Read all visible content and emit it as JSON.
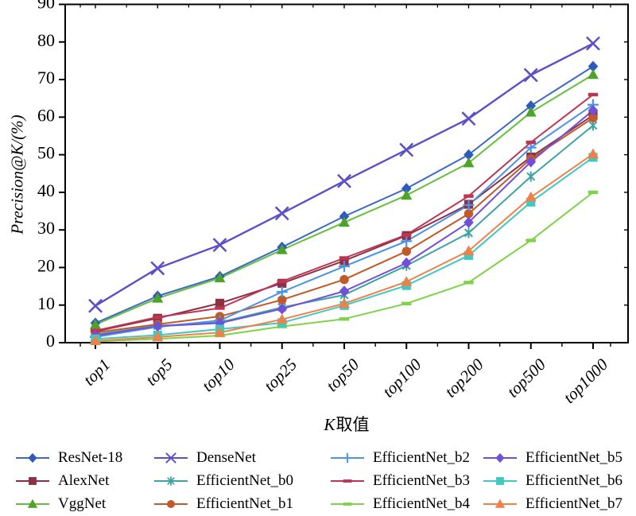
{
  "chart_data": {
    "type": "line",
    "title": "",
    "xlabel": "K取值",
    "xlabel_parts": {
      "k": "K",
      "rest": "取值"
    },
    "ylabel": "Precision@K/(%)",
    "categories": [
      "top1",
      "top5",
      "top10",
      "top25",
      "top50",
      "top100",
      "top200",
      "top500",
      "top1000"
    ],
    "ylim": [
      0,
      90
    ],
    "ytick_step": 10,
    "yticks": [
      0,
      10,
      20,
      30,
      40,
      50,
      60,
      70,
      80,
      90
    ],
    "grid": false,
    "legend_position": "bottom",
    "axis_color": "#000000",
    "series": [
      {
        "name": "ResNet-18",
        "marker": "diamond",
        "color": "#3b69c6",
        "marker_color": "#2f5bc0",
        "values": [
          5.2,
          12.4,
          17.6,
          25.4,
          33.6,
          41.0,
          50.0,
          63.0,
          73.5
        ]
      },
      {
        "name": "AlexNet",
        "marker": "square",
        "color": "#8e3044",
        "marker_color": "#8e3044",
        "values": [
          3.0,
          6.5,
          10.5,
          15.8,
          21.8,
          28.5,
          36.8,
          49.4,
          60.5
        ]
      },
      {
        "name": "VggNet",
        "marker": "triangle",
        "color": "#64c03c",
        "marker_color": "#4ea32a",
        "values": [
          4.8,
          11.8,
          17.2,
          24.7,
          32.0,
          39.2,
          47.8,
          61.3,
          71.3
        ]
      },
      {
        "name": "DenseNet",
        "marker": "x",
        "color": "#5b50c8",
        "marker_color": "#5b50c8",
        "values": [
          9.8,
          19.8,
          26.0,
          34.4,
          43.0,
          51.3,
          59.6,
          71.2,
          79.6
        ]
      },
      {
        "name": "EfficientNet_b0",
        "marker": "asterisk",
        "color": "#3fa3a3",
        "marker_color": "#3fa3a3",
        "values": [
          2.2,
          4.5,
          5.4,
          9.4,
          12.7,
          20.5,
          29.2,
          44.2,
          57.8
        ]
      },
      {
        "name": "EfficientNet_b1",
        "marker": "circle",
        "color": "#c05a28",
        "marker_color": "#c05a28",
        "values": [
          2.7,
          4.9,
          7.0,
          11.4,
          16.8,
          24.3,
          34.3,
          48.9,
          59.8
        ]
      },
      {
        "name": "EfficientNet_b2",
        "marker": "plus",
        "color": "#4b93e6",
        "marker_color": "#4b93e6",
        "values": [
          1.5,
          4.2,
          5.9,
          13.5,
          20.3,
          27.0,
          36.6,
          51.9,
          63.3
        ]
      },
      {
        "name": "EfficientNet_b3",
        "marker": "hbar",
        "color": "#be3455",
        "marker_color": "#be3455",
        "values": [
          3.2,
          6.8,
          9.2,
          16.3,
          22.5,
          28.7,
          39.0,
          53.3,
          66.0
        ]
      },
      {
        "name": "EfficientNet_b4",
        "marker": "hbar",
        "color": "#7ed348",
        "marker_color": "#7ed348",
        "values": [
          0.3,
          1.0,
          1.9,
          4.3,
          6.3,
          10.4,
          16.0,
          27.2,
          40.0
        ]
      },
      {
        "name": "EfficientNet_b5",
        "marker": "diamond",
        "color": "#7050d8",
        "marker_color": "#7050d8",
        "values": [
          1.9,
          4.4,
          5.2,
          9.0,
          13.7,
          21.2,
          32.0,
          48.1,
          61.8
        ]
      },
      {
        "name": "EfficientNet_b6",
        "marker": "square",
        "color": "#3fc9c0",
        "marker_color": "#3fc9c0",
        "values": [
          1.0,
          2.0,
          3.6,
          5.3,
          9.9,
          15.2,
          23.2,
          37.4,
          49.3
        ]
      },
      {
        "name": "EfficientNet_b7",
        "marker": "triangle",
        "color": "#f08048",
        "marker_color": "#f08048",
        "values": [
          0.5,
          1.5,
          2.7,
          6.2,
          10.4,
          16.2,
          24.4,
          38.7,
          50.2
        ]
      }
    ],
    "legend_columns": [
      [
        "ResNet-18",
        "AlexNet",
        "VggNet"
      ],
      [
        "DenseNet",
        "EfficientNet_b0",
        "EfficientNet_b1"
      ],
      [
        "EfficientNet_b2",
        "EfficientNet_b3",
        "EfficientNet_b4"
      ],
      [
        "EfficientNet_b5",
        "EfficientNet_b6",
        "EfficientNet_b7"
      ]
    ]
  }
}
